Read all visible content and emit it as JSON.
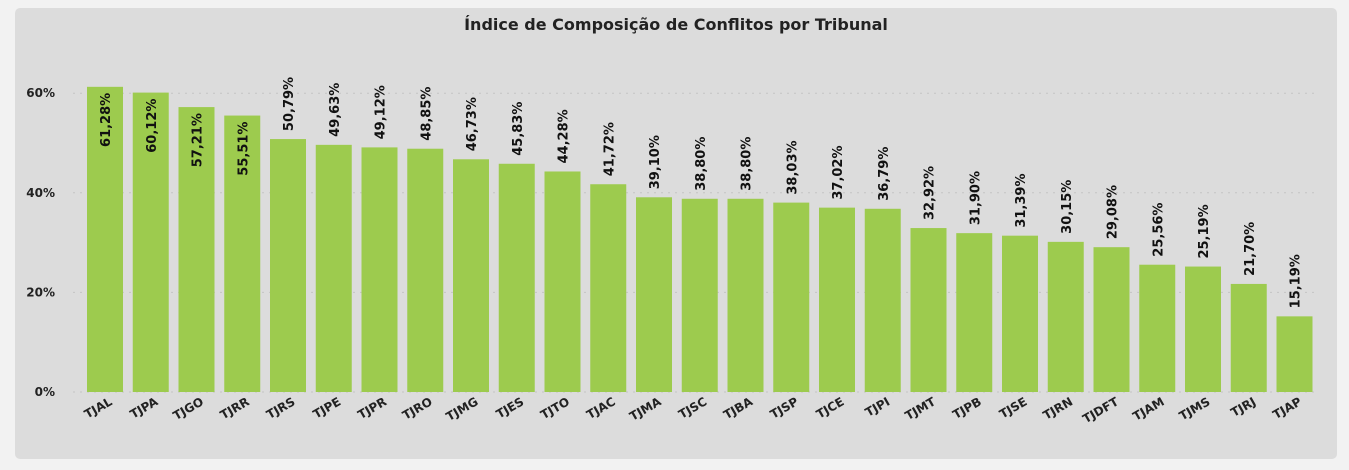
{
  "chart_data": {
    "type": "bar",
    "title": "Índice de Composição de Conflitos por Tribunal",
    "xlabel": "",
    "ylabel": "",
    "ylim": [
      0,
      65
    ],
    "yticks": [
      0,
      20,
      40,
      60
    ],
    "ytick_labels": [
      "0%",
      "20%",
      "40%",
      "60%"
    ],
    "grid": true,
    "bar_color": "#9dcb4e",
    "categories": [
      "TJAL",
      "TJPA",
      "TJGO",
      "TJRR",
      "TJRS",
      "TJPE",
      "TJPR",
      "TJRO",
      "TJMG",
      "TJES",
      "TJTO",
      "TJAC",
      "TJMA",
      "TJSC",
      "TJBA",
      "TJSP",
      "TJCE",
      "TJPI",
      "TJMT",
      "TJPB",
      "TJSE",
      "TJRN",
      "TJDFT",
      "TJAM",
      "TJMS",
      "TJRJ",
      "TJAP"
    ],
    "values": [
      61.28,
      60.12,
      57.21,
      55.51,
      50.79,
      49.63,
      49.12,
      48.85,
      46.73,
      45.83,
      44.28,
      41.72,
      39.1,
      38.8,
      38.8,
      38.03,
      37.02,
      36.79,
      32.92,
      31.9,
      31.39,
      30.15,
      29.08,
      25.56,
      25.19,
      21.7,
      15.19
    ],
    "data_labels": [
      "61,28%",
      "60,12%",
      "57,21%",
      "55,51%",
      "50,79%",
      "49,63%",
      "49,12%",
      "48,85%",
      "46,73%",
      "45,83%",
      "44,28%",
      "41,72%",
      "39,10%",
      "38,80%",
      "38,80%",
      "38,03%",
      "37,02%",
      "36,79%",
      "32,92%",
      "31,90%",
      "31,39%",
      "30,15%",
      "29,08%",
      "25,56%",
      "25,19%",
      "21,70%",
      "15,19%"
    ],
    "labels_inside": [
      true,
      true,
      true,
      true
    ]
  }
}
